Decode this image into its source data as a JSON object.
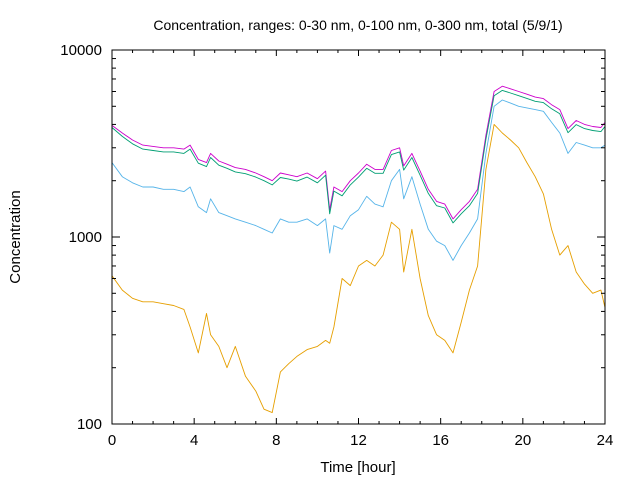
{
  "chart_data": {
    "type": "line",
    "title": "Concentration, ranges: 0-30 nm, 0-100 nm, 0-300 nm, total (5/9/1)",
    "xlabel": "Time [hour]",
    "ylabel": "Concentration",
    "xlim": [
      0,
      24
    ],
    "ylim": [
      100,
      10000
    ],
    "yscale": "log",
    "grid": false,
    "legend": "none",
    "x_ticks": [
      "0",
      "4",
      "8",
      "12",
      "16",
      "20",
      "24"
    ],
    "y_ticks": [
      "100",
      "1000",
      "10000"
    ],
    "series": [
      {
        "color": "#cc00cc",
        "x": [
          0,
          0.5,
          1,
          1.5,
          2,
          2.5,
          3,
          3.5,
          3.8,
          4.2,
          4.6,
          4.8,
          5.2,
          5.6,
          6,
          6.5,
          7,
          7.4,
          7.8,
          8.2,
          8.6,
          9,
          9.5,
          10,
          10.4,
          10.6,
          10.8,
          11.2,
          11.6,
          12,
          12.4,
          12.8,
          13.2,
          13.6,
          14,
          14.2,
          14.6,
          15,
          15.4,
          15.8,
          16.2,
          16.6,
          17,
          17.4,
          17.8,
          18.2,
          18.6,
          19,
          19.4,
          19.8,
          20.2,
          20.6,
          21,
          21.4,
          21.8,
          22.2,
          22.6,
          23,
          23.4,
          23.8,
          24
        ],
        "y": [
          3950,
          3600,
          3300,
          3100,
          3050,
          3000,
          3000,
          2950,
          3100,
          2600,
          2500,
          2800,
          2550,
          2450,
          2350,
          2300,
          2200,
          2100,
          2000,
          2200,
          2150,
          2100,
          2200,
          2050,
          2250,
          1400,
          1850,
          1750,
          2000,
          2200,
          2450,
          2300,
          2300,
          2900,
          3000,
          2400,
          2800,
          2250,
          1800,
          1550,
          1500,
          1250,
          1400,
          1550,
          1800,
          3500,
          6000,
          6400,
          6200,
          6000,
          5800,
          5600,
          5500,
          5100,
          4800,
          3800,
          4200,
          4000,
          3900,
          3850,
          4100
        ]
      },
      {
        "color": "#009e73",
        "x": [
          0,
          0.5,
          1,
          1.5,
          2,
          2.5,
          3,
          3.5,
          3.8,
          4.2,
          4.6,
          4.8,
          5.2,
          5.6,
          6,
          6.5,
          7,
          7.4,
          7.8,
          8.2,
          8.6,
          9,
          9.5,
          10,
          10.4,
          10.6,
          10.8,
          11.2,
          11.6,
          12,
          12.4,
          12.8,
          13.2,
          13.6,
          14,
          14.2,
          14.6,
          15,
          15.4,
          15.8,
          16.2,
          16.6,
          17,
          17.4,
          17.8,
          18.2,
          18.6,
          19,
          19.4,
          19.8,
          20.2,
          20.6,
          21,
          21.4,
          21.8,
          22.2,
          22.6,
          23,
          23.4,
          23.8,
          24
        ],
        "y": [
          3850,
          3450,
          3150,
          2950,
          2900,
          2850,
          2850,
          2800,
          2950,
          2480,
          2380,
          2660,
          2420,
          2330,
          2230,
          2180,
          2090,
          2000,
          1900,
          2080,
          2040,
          1990,
          2090,
          1950,
          2140,
          1330,
          1760,
          1660,
          1900,
          2090,
          2330,
          2190,
          2190,
          2760,
          2850,
          2280,
          2660,
          2140,
          1710,
          1470,
          1430,
          1190,
          1330,
          1470,
          1710,
          3330,
          5700,
          6080,
          5890,
          5700,
          5510,
          5320,
          5230,
          4850,
          4560,
          3610,
          3990,
          3800,
          3710,
          3660,
          3900
        ]
      },
      {
        "color": "#56b4e9",
        "x": [
          0,
          0.5,
          1,
          1.5,
          2,
          2.5,
          3,
          3.5,
          3.8,
          4.2,
          4.6,
          4.8,
          5.2,
          5.6,
          6,
          6.5,
          7,
          7.4,
          7.8,
          8.2,
          8.6,
          9,
          9.5,
          10,
          10.4,
          10.6,
          10.8,
          11.2,
          11.6,
          12,
          12.4,
          12.8,
          13.2,
          13.6,
          14,
          14.2,
          14.6,
          15,
          15.4,
          15.8,
          16.2,
          16.6,
          17,
          17.4,
          17.8,
          18.2,
          18.6,
          19,
          19.4,
          19.8,
          20.2,
          20.6,
          21,
          21.4,
          21.8,
          22.2,
          22.6,
          23,
          23.4,
          23.8,
          24
        ],
        "y": [
          2500,
          2100,
          1950,
          1850,
          1850,
          1800,
          1800,
          1750,
          1850,
          1450,
          1350,
          1600,
          1350,
          1300,
          1250,
          1200,
          1150,
          1100,
          1050,
          1250,
          1200,
          1200,
          1250,
          1150,
          1250,
          820,
          1150,
          1100,
          1300,
          1400,
          1650,
          1500,
          1450,
          2000,
          2300,
          1600,
          2100,
          1500,
          1100,
          950,
          900,
          750,
          900,
          1050,
          1250,
          2800,
          5000,
          5400,
          5200,
          5000,
          4900,
          4800,
          4700,
          4100,
          3600,
          2800,
          3200,
          3100,
          3000,
          3000,
          3100
        ]
      },
      {
        "color": "#e69f00",
        "x": [
          0,
          0.5,
          1,
          1.5,
          2,
          2.5,
          3,
          3.5,
          3.8,
          4.2,
          4.6,
          4.8,
          5.2,
          5.6,
          6,
          6.5,
          7,
          7.4,
          7.8,
          8.2,
          8.6,
          9,
          9.5,
          10,
          10.4,
          10.6,
          10.8,
          11.2,
          11.6,
          12,
          12.4,
          12.8,
          13.2,
          13.6,
          14,
          14.2,
          14.6,
          15,
          15.4,
          15.8,
          16.2,
          16.6,
          17,
          17.4,
          17.8,
          18.2,
          18.6,
          19,
          19.4,
          19.8,
          20.2,
          20.6,
          21,
          21.4,
          21.8,
          22.2,
          22.6,
          23,
          23.4,
          23.8,
          24
        ],
        "y": [
          620,
          520,
          470,
          450,
          450,
          440,
          430,
          410,
          330,
          240,
          390,
          300,
          260,
          200,
          260,
          180,
          150,
          120,
          115,
          190,
          210,
          230,
          250,
          260,
          280,
          270,
          330,
          600,
          550,
          700,
          750,
          700,
          800,
          1200,
          1100,
          650,
          1100,
          600,
          380,
          300,
          280,
          240,
          350,
          520,
          700,
          2300,
          4000,
          3600,
          3300,
          3000,
          2500,
          2100,
          1700,
          1100,
          800,
          900,
          650,
          560,
          500,
          520,
          420
        ]
      }
    ]
  }
}
